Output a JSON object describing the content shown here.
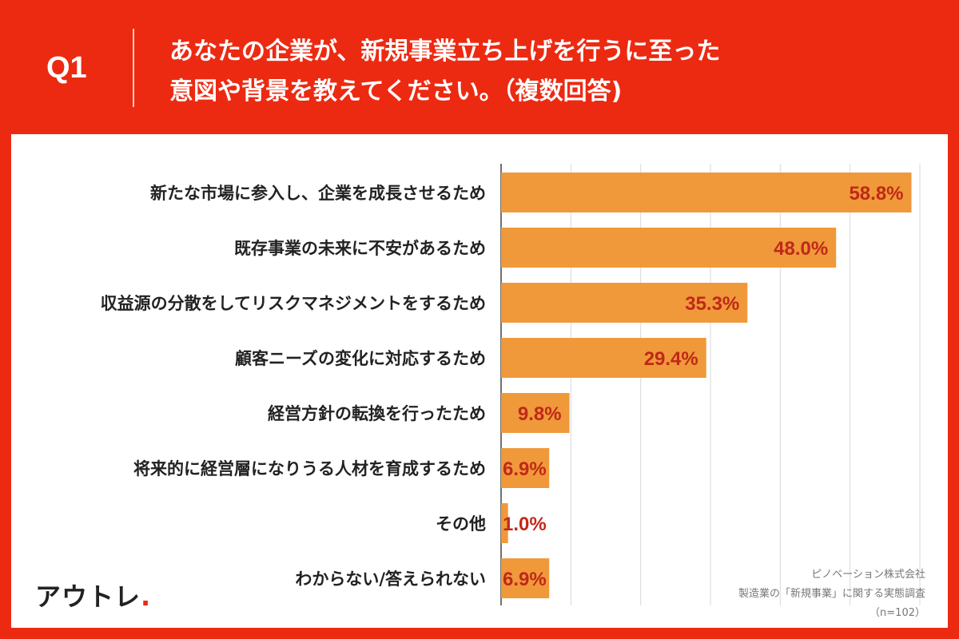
{
  "header": {
    "q_label": "Q1",
    "title_line1": "あなたの企業が、新規事業立ち上げを行うに至った",
    "title_line2": "意図や背景を教えてください。（複数回答)"
  },
  "colors": {
    "background": "#ec2a12",
    "bar": "#f0993a",
    "value_text": "#c0281a",
    "category_text": "#222222",
    "grid": "#d9d9d9"
  },
  "chart_data": {
    "type": "bar",
    "orientation": "horizontal",
    "categories": [
      "新たな市場に参入し、企業を成長させるため",
      "既存事業の未来に不安があるため",
      "収益源の分散をしてリスクマネジメントをするため",
      "顧客ニーズの変化に対応するため",
      "経営方針の転換を行ったため",
      "将来的に経営層になりうる人材を育成するため",
      "その他",
      "わからない/答えられない"
    ],
    "values": [
      58.8,
      48.0,
      35.3,
      29.4,
      9.8,
      6.9,
      1.0,
      6.9
    ],
    "value_labels": [
      "58.8%",
      "48.0%",
      "35.3%",
      "29.4%",
      "9.8%",
      "6.9%",
      "1.0%",
      "6.9%"
    ],
    "xlim": [
      0,
      60
    ],
    "grid": true
  },
  "footer": {
    "logo_text": "アウトレ",
    "logo_dot": ".",
    "source_company": "ピノベーション株式会社",
    "source_survey": "製造業の「新規事業」に関する実態調査",
    "sample": "（n=102）"
  }
}
